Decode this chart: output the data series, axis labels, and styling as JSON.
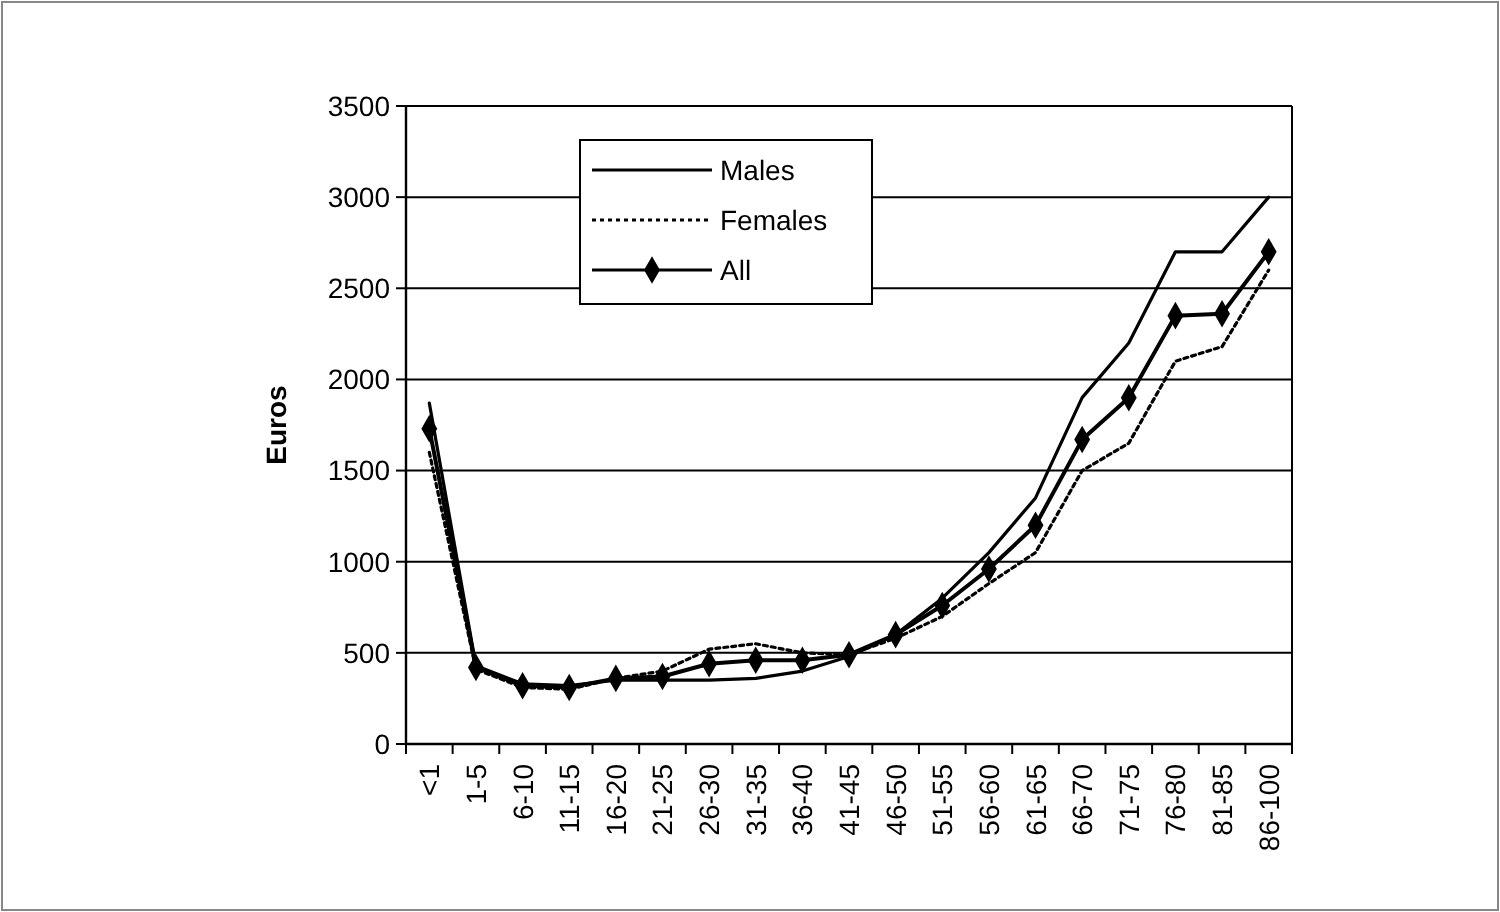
{
  "chart_data": {
    "type": "line",
    "ylabel": "Euros",
    "categories": [
      "<1",
      "1-5",
      "6-10",
      "11-15",
      "16-20",
      "21-25",
      "26-30",
      "31-35",
      "36-40",
      "41-45",
      "46-50",
      "51-55",
      "56-60",
      "61-65",
      "66-70",
      "71-75",
      "76-80",
      "81-85",
      "86-100"
    ],
    "series": [
      {
        "name": "Males",
        "color": "#000000",
        "line_style": "solid",
        "marker": "none",
        "values": [
          1870,
          430,
          330,
          320,
          350,
          350,
          350,
          360,
          400,
          480,
          600,
          800,
          1050,
          1350,
          1900,
          2200,
          2700,
          2700,
          3000
        ]
      },
      {
        "name": "Females",
        "color": "#000000",
        "line_style": "dotted",
        "marker": "none",
        "values": [
          1600,
          410,
          310,
          300,
          360,
          400,
          520,
          550,
          500,
          490,
          580,
          700,
          880,
          1050,
          1500,
          1650,
          2100,
          2180,
          2600
        ]
      },
      {
        "name": "All",
        "color": "#000000",
        "line_style": "solid",
        "marker": "diamond",
        "values": [
          1730,
          420,
          320,
          310,
          360,
          370,
          440,
          460,
          460,
          490,
          600,
          760,
          960,
          1200,
          1670,
          1900,
          2350,
          2360,
          2700
        ]
      }
    ],
    "ylim": [
      0,
      3500
    ],
    "yticks": [
      0,
      500,
      1000,
      1500,
      2000,
      2500,
      3000,
      3500
    ],
    "grid": "y",
    "legend": "top left"
  }
}
